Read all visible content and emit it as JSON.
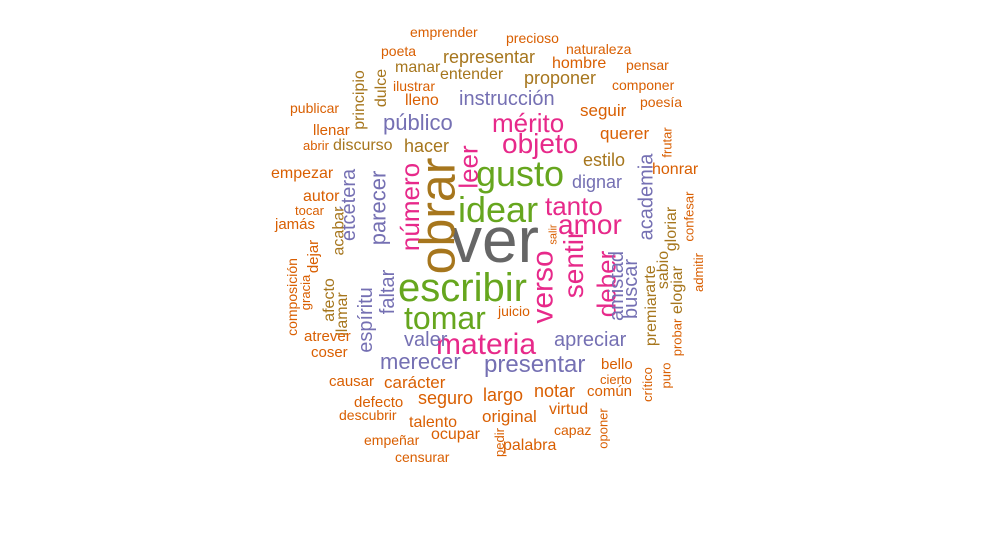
{
  "words": {
    "ver": "ver",
    "obrar": "obrar",
    "escribir": "escribir",
    "idear": "idear",
    "gusto": "gusto",
    "tomar": "tomar",
    "materia": "materia",
    "amor": "amor",
    "tanto": "tanto",
    "verso": "verso",
    "sentir": "sentir",
    "objeto": "objeto",
    "mérito": "mérito",
    "número": "número",
    "leer": "leer",
    "deber": "deber",
    "público": "público",
    "instrucción": "instrucción",
    "presentar": "presentar",
    "merecer": "merecer",
    "parecer": "parecer",
    "etcétera": "etcétera",
    "apreciar": "apreciar",
    "espíritu": "espíritu",
    "faltar": "faltar",
    "valer": "valer",
    "academia": "academia",
    "buscar": "buscar",
    "amistad": "amistad",
    "dignar": "dignar",
    "estilo": "estilo",
    "representar": "representar",
    "proponer": "proponer",
    "entender": "entender",
    "hombre": "hombre",
    "naturaleza": "naturaleza",
    "emprender": "emprender",
    "precioso": "precioso",
    "poeta": "poeta",
    "manar": "manar",
    "pensar": "pensar",
    "componer": "componer",
    "poesía": "poesía",
    "seguir": "seguir",
    "querer": "querer",
    "ilustrar": "ilustrar",
    "dulce": "dulce",
    "principio": "principio",
    "lleno": "lleno",
    "publicar": "publicar",
    "llenar": "llenar",
    "abrir": "abrir",
    "discurso": "discurso",
    "hacer": "hacer",
    "frutar": "frutar",
    "empezar": "empezar",
    "honrar": "honrar",
    "autor": "autor",
    "tocar": "tocar",
    "jamás": "jamás",
    "acabar": "acabar",
    "dejar": "dejar",
    "gloriar": "gloriar",
    "confesar": "confesar",
    "sabio": "sabio",
    "arte": "arte",
    "salir": "salir",
    "admitir": "admitir",
    "composición": "composición",
    "gracia": "gracia",
    "afecto": "afecto",
    "llamar": "llamar",
    "elogiar": "elogiar",
    "premiar": "premiar",
    "probar": "probar",
    "juicio": "juicio",
    "atrever": "atrever",
    "coser": "coser",
    "bello": "bello",
    "cierto": "cierto",
    "puro": "puro",
    "crítico": "crítico",
    "común": "común",
    "causar": "causar",
    "carácter": "carácter",
    "notar": "notar",
    "largo": "largo",
    "seguro": "seguro",
    "defecto": "defecto",
    "descubrir": "descubrir",
    "virtud": "virtud",
    "original": "original",
    "talento": "talento",
    "capaz": "capaz",
    "empeñar": "empeñar",
    "ocupar": "ocupar",
    "pedir": "pedir",
    "palabra": "palabra",
    "oponer": "oponer",
    "censurar": "censurar"
  },
  "colors": {
    "orange": "#d95f02",
    "purple": "#7570b3",
    "pink": "#e7298a",
    "green": "#66a61e",
    "brown": "#a6761d",
    "gray": "#666666",
    "background": "#ffffff"
  }
}
